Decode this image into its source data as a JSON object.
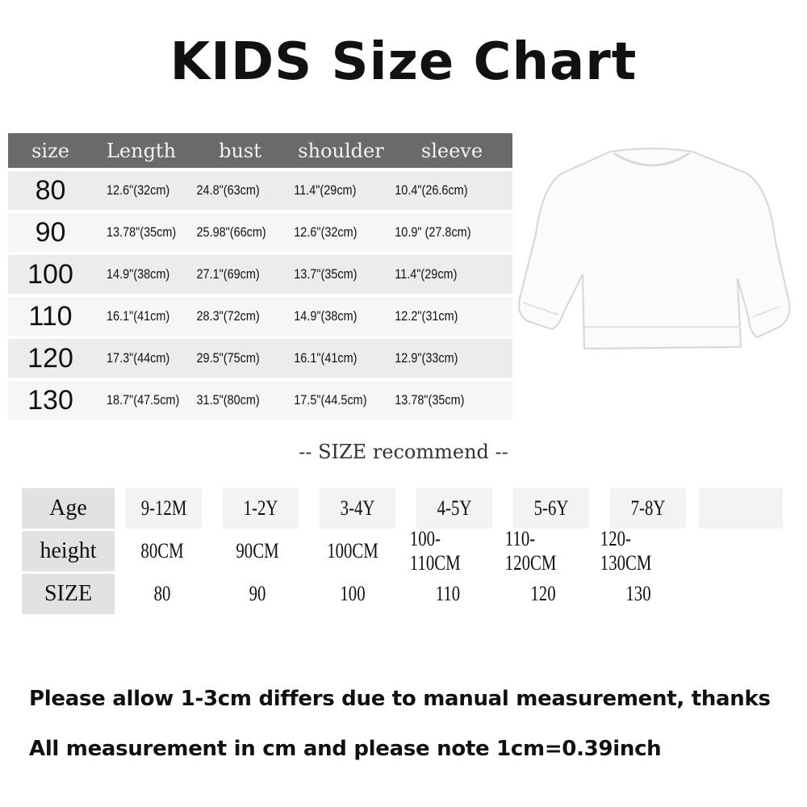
{
  "title": "KIDS Size Chart",
  "size_table": {
    "headers": [
      "size",
      "Length",
      "bust",
      "shoulder",
      "sleeve"
    ],
    "rows": [
      [
        "80",
        "12.6\"(32cm)",
        "24.8\"(63cm)",
        "11.4\"(29cm)",
        "10.4\"(26.6cm)"
      ],
      [
        "90",
        "13.78\"(35cm)",
        "25.98\"(66cm)",
        "12.6\"(32cm)",
        "10.9\" (27.8cm)"
      ],
      [
        "100",
        "14.9\"(38cm)",
        "27.1\"(69cm)",
        "13.7\"(35cm)",
        "11.4\"(29cm)"
      ],
      [
        "110",
        "16.1\"(41cm)",
        "28.3\"(72cm)",
        "14.9\"(38cm)",
        "12.2\"(31cm)"
      ],
      [
        "120",
        "17.3\"(44cm)",
        "29.5\"(75cm)",
        "16.1\"(41cm)",
        "12.9\"(33cm)"
      ],
      [
        "130",
        "18.7\"(47.5cm)",
        "31.5\"(80cm)",
        "17.5\"(44.5cm)",
        "13.78\"(35cm)"
      ]
    ]
  },
  "recommend_heading": "--  SIZE  recommend  --",
  "recommend_table": {
    "age": {
      "label": "Age",
      "values": [
        "9-12M",
        "1-2Y",
        "3-4Y",
        "4-5Y",
        "5-6Y",
        "7-8Y"
      ]
    },
    "height": {
      "label": "height",
      "values": [
        "80CM",
        "90CM",
        "100CM",
        "100-110CM",
        "110-120CM",
        "120-130CM"
      ]
    },
    "size": {
      "label": "SIZE",
      "values": [
        "80",
        "90",
        "100",
        "110",
        "120",
        "130"
      ]
    }
  },
  "notes": [
    "Please allow 1-3cm differs due to manual measurement, thanks",
    "All measurement in cm and please note 1cm=0.39inch"
  ],
  "colors": {
    "header_bg": "#6a6a6a",
    "row_light": "#f6f6f6",
    "row_dark": "#ececec"
  }
}
